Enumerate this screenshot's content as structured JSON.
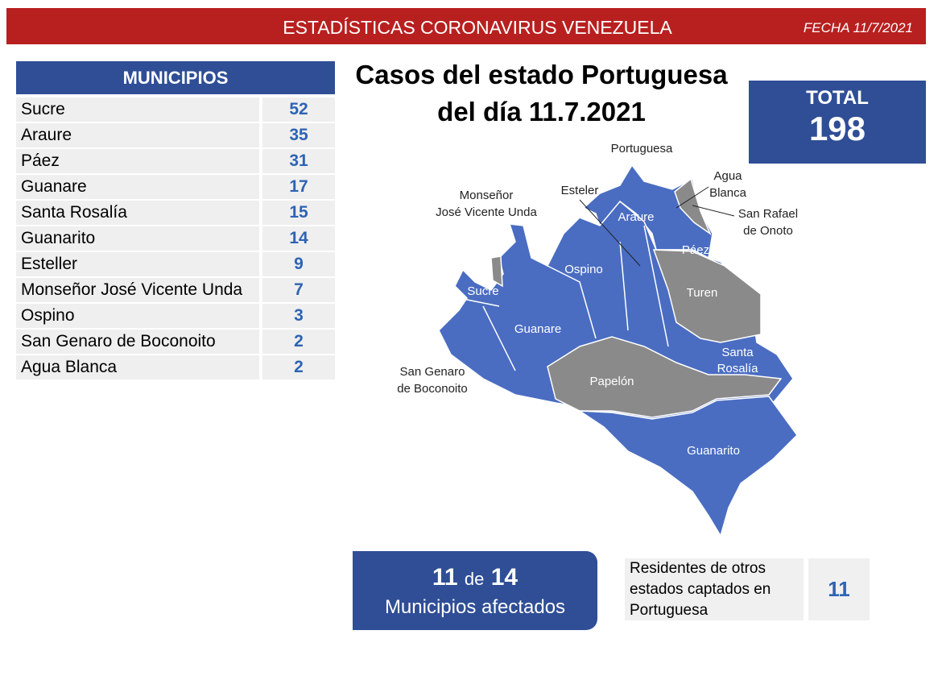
{
  "header": {
    "title": "ESTADÍSTICAS CORONAVIRUS VENEZUELA",
    "date": "FECHA 11/7/2021"
  },
  "table": {
    "header": "MUNICIPIOS",
    "rows": [
      [
        "Sucre",
        52
      ],
      [
        "Araure",
        35
      ],
      [
        "Páez",
        31
      ],
      [
        "Guanare",
        17
      ],
      [
        "Santa Rosalía",
        15
      ],
      [
        "Guanarito",
        14
      ],
      [
        "Esteller",
        9
      ],
      [
        "Monseñor José Vicente Unda",
        7
      ],
      [
        "Ospino",
        3
      ],
      [
        "San Genaro de Boconoito",
        2
      ],
      [
        "Agua Blanca",
        2
      ]
    ]
  },
  "title": {
    "line1": "Casos del estado Portuguesa",
    "line2": "del día 11.7.2021"
  },
  "total": {
    "label": "TOTAL",
    "value": 198
  },
  "map": {
    "labels": [
      {
        "lines": [
          "Portuguesa"
        ]
      },
      {
        "lines": [
          "Esteler"
        ]
      },
      {
        "lines": [
          "Monseñor",
          "José Vicente Unda"
        ]
      },
      {
        "lines": [
          "Agua",
          "Blanca"
        ]
      },
      {
        "lines": [
          "San Rafael",
          "de Onoto"
        ]
      },
      {
        "lines": [
          "Araure"
        ]
      },
      {
        "lines": [
          "Páez"
        ]
      },
      {
        "lines": [
          "Ospino"
        ]
      },
      {
        "lines": [
          "Turen"
        ]
      },
      {
        "lines": [
          "Sucre"
        ]
      },
      {
        "lines": [
          "Guanare"
        ]
      },
      {
        "lines": [
          "Santa",
          "Rosalía"
        ]
      },
      {
        "lines": [
          "San Genaro",
          "de Boconoito"
        ]
      },
      {
        "lines": [
          "Papelón"
        ]
      },
      {
        "lines": [
          "Guanarito"
        ]
      }
    ]
  },
  "affected": {
    "count": 11,
    "of": "de",
    "total": 14,
    "caption": "Municipios afectados"
  },
  "residents": {
    "label": "Residentes de otros estados captados en Portuguesa",
    "value": 11
  }
}
